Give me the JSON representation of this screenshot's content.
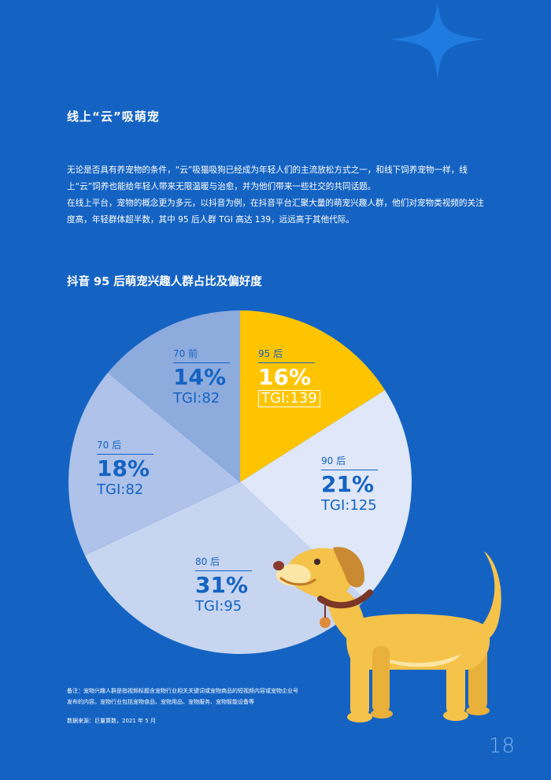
{
  "section": {
    "title": "线上“云”吸萌宠"
  },
  "paragraphs": [
    "无论是否具有养宠物的条件，“云”吸猫吸狗已经成为年轻人们的主流放松方式之一，和线下饲养宠物一样，线上“云”饲养也能给年轻人带来无限温暖与治愈，并为他们带来一些社交的共同话题。",
    "在线上平台，宠物的概念更为多元，以抖音为例，在抖音平台汇聚大量的萌宠兴趣人群，他们对宠物类视频的关注度高，年轻群体超半数，其中 95 后人群 TGI 高达 139，远远高于其他代际。"
  ],
  "chart_data": {
    "type": "pie",
    "title": "抖音 95 后萌宠兴趣人群占比及偏好度",
    "slices": [
      {
        "name": "95 后",
        "value": 16,
        "pct_label": "16%",
        "tgi_label": "TGI:139",
        "color": "#ffc400",
        "highlight": true
      },
      {
        "name": "90 后",
        "value": 21,
        "pct_label": "21%",
        "tgi_label": "TGI:125",
        "color": "#dfe7f8",
        "highlight": false
      },
      {
        "name": "80 后",
        "value": 31,
        "pct_label": "31%",
        "tgi_label": "TGI:95",
        "color": "#c8d5f1",
        "highlight": false
      },
      {
        "name": "70 后",
        "value": 18,
        "pct_label": "18%",
        "tgi_label": "TGI:82",
        "color": "#aec2ea",
        "highlight": false
      },
      {
        "name": "70 前",
        "value": 14,
        "pct_label": "14%",
        "tgi_label": "TGI:82",
        "color": "#8eabde",
        "highlight": false
      }
    ]
  },
  "footnote": {
    "note_line1": "备注：宠物兴趣人群是指视频标题含宠物行业相关关键词或宠物商品的短视频内容或宠物企业号",
    "note_line2": "发布的内容。宠物行业包括宠物食品、宠物用品、宠物服务、宠物智能设备等",
    "source": "数据来源：巨量算数，2021 年 5 月"
  },
  "page_number": "18",
  "colors": {
    "background": "#1463c3",
    "highlight": "#ffc400",
    "dog": "#f5c24a"
  },
  "icons": {
    "decoration": "sparkle-icon",
    "illustration": "dog-illustration"
  }
}
